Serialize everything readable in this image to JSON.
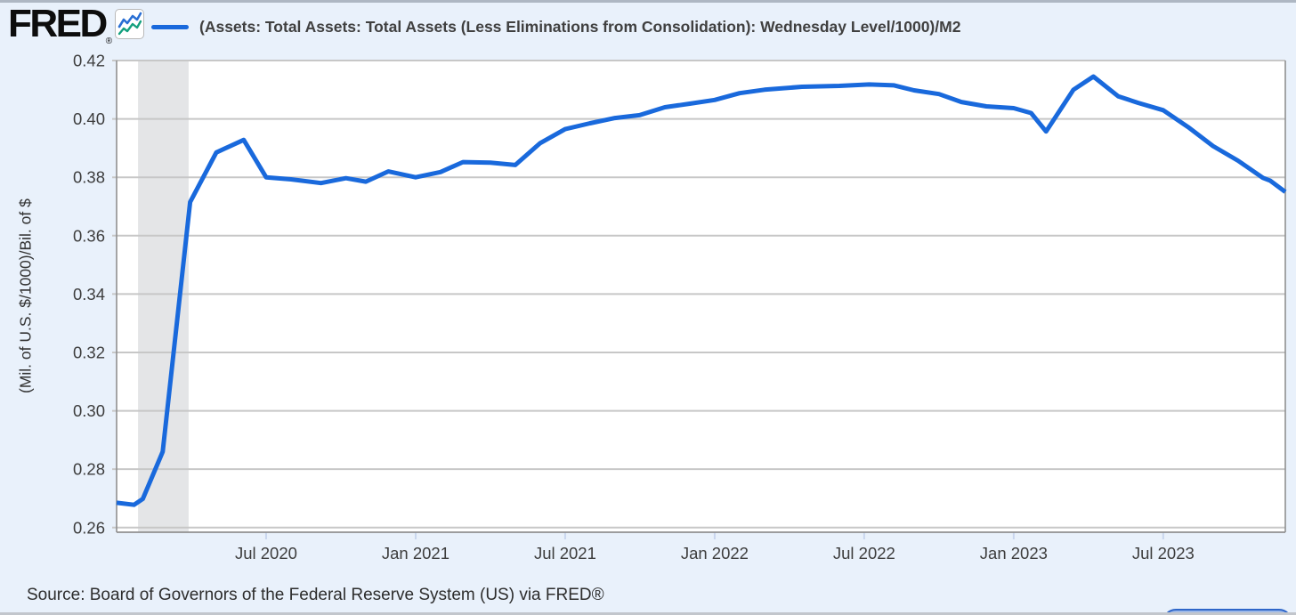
{
  "header": {
    "logo_text": "FRED",
    "registered_mark": "®",
    "legend_label": "(Assets: Total Assets: Total Assets (Less Eliminations from Consolidation): Wednesday Level/1000)/M2"
  },
  "footer": {
    "source_text": "Source: Board of Governors of the Federal Reserve System (US) via FRED®"
  },
  "colors": {
    "background": "#e9f1fb",
    "plot_background": "#ffffff",
    "line": "#1969dc",
    "gridline": "#c7c7c7",
    "axis_border": "#909090",
    "recession_band": "#e4e5e7",
    "tick_text": "#3d3d3d",
    "x_tick_mark": "#c9d6ee",
    "icon_line_blue": "#2a6fd4",
    "icon_line_green": "#13a07e"
  },
  "chart_data": {
    "type": "line",
    "title": "(Assets: Total Assets: Total Assets (Less Eliminations from Consolidation): Wednesday Level/1000)/M2",
    "xlabel": "",
    "ylabel": "(Mil. of U.S. $/1000)/Bil. of $",
    "legend_position": "top",
    "grid": true,
    "ylim": [
      0.2584,
      0.42
    ],
    "y_ticks": [
      0.26,
      0.28,
      0.3,
      0.32,
      0.34,
      0.36,
      0.38,
      0.4,
      0.42
    ],
    "x_start_month": "Jan 2020",
    "xlim_months": [
      0,
      46.9
    ],
    "x_tick_months": [
      6,
      12,
      18,
      24,
      30,
      36,
      42
    ],
    "x_tick_labels": [
      "Jul 2020",
      "Jan 2021",
      "Jul 2021",
      "Jan 2022",
      "Jul 2022",
      "Jan 2023",
      "Jul 2023"
    ],
    "recession_band_months": [
      0.86,
      2.89
    ],
    "series": [
      {
        "name": "(Assets: Total Assets: Total Assets (Less Eliminations from Consolidation): Wednesday Level/1000)/M2",
        "points_month_value": [
          [
            0.0,
            0.2685
          ],
          [
            0.7,
            0.2678
          ],
          [
            1.05,
            0.2698
          ],
          [
            1.85,
            0.286
          ],
          [
            2.95,
            0.3715
          ],
          [
            4.0,
            0.3885
          ],
          [
            5.1,
            0.3928
          ],
          [
            6.0,
            0.38
          ],
          [
            7.0,
            0.3793
          ],
          [
            8.2,
            0.378
          ],
          [
            9.2,
            0.3797
          ],
          [
            10.0,
            0.3785
          ],
          [
            10.9,
            0.382
          ],
          [
            12.0,
            0.38
          ],
          [
            13.0,
            0.3818
          ],
          [
            13.9,
            0.3852
          ],
          [
            15.0,
            0.385
          ],
          [
            16.0,
            0.3842
          ],
          [
            17.0,
            0.3917
          ],
          [
            18.0,
            0.3965
          ],
          [
            19.0,
            0.3985
          ],
          [
            20.0,
            0.4003
          ],
          [
            21.0,
            0.4013
          ],
          [
            22.0,
            0.404
          ],
          [
            23.0,
            0.4052
          ],
          [
            24.0,
            0.4065
          ],
          [
            25.0,
            0.4088
          ],
          [
            26.0,
            0.41
          ],
          [
            27.5,
            0.411
          ],
          [
            29.0,
            0.4113
          ],
          [
            30.2,
            0.4118
          ],
          [
            31.2,
            0.4115
          ],
          [
            32.0,
            0.4098
          ],
          [
            33.0,
            0.4085
          ],
          [
            33.9,
            0.4058
          ],
          [
            34.9,
            0.4043
          ],
          [
            36.0,
            0.4037
          ],
          [
            36.7,
            0.402
          ],
          [
            37.3,
            0.3957
          ],
          [
            38.4,
            0.41
          ],
          [
            39.2,
            0.4145
          ],
          [
            40.2,
            0.4077
          ],
          [
            41.0,
            0.4055
          ],
          [
            42.0,
            0.403
          ],
          [
            43.0,
            0.3972
          ],
          [
            44.0,
            0.3907
          ],
          [
            45.0,
            0.3857
          ],
          [
            46.0,
            0.3798
          ],
          [
            46.3,
            0.3788
          ],
          [
            46.9,
            0.375
          ]
        ]
      }
    ]
  }
}
